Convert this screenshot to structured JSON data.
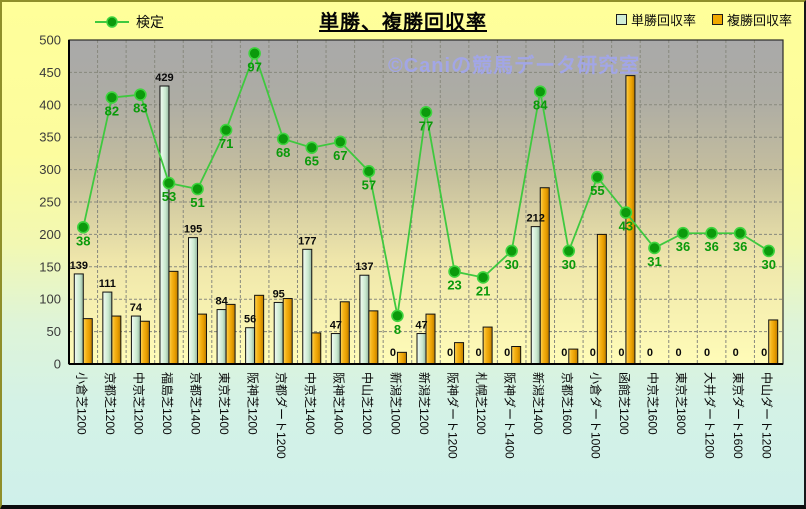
{
  "chart_data": {
    "type": "combo",
    "title": "単勝、複勝回収率",
    "watermark": "©Caniの競馬データ研究室",
    "categories": [
      "小倉芝1200",
      "京都芝1200",
      "中京芝1200",
      "福島芝1200",
      "京都芝1400",
      "東京芝1400",
      "阪神芝1200",
      "京都ダート1200",
      "中京芝1400",
      "阪神芝1400",
      "中山芝1200",
      "新潟芝1000",
      "新潟芝1200",
      "阪神ダート1200",
      "札幌芝1200",
      "阪神ダート1400",
      "新潟芝1400",
      "京都芝1600",
      "小倉ダート1000",
      "函館芝1200",
      "中京芝1600",
      "東京芝1800",
      "大井ダート1200",
      "東京ダート1600",
      "中山ダート1200"
    ],
    "series": [
      {
        "name": "検定",
        "type": "line",
        "color": "#3FC93F",
        "marker_color": "#0C9A0C",
        "values": [
          38,
          82,
          83,
          53,
          51,
          71,
          97,
          68,
          65,
          67,
          57,
          8,
          77,
          23,
          21,
          30,
          84,
          30,
          55,
          43,
          31,
          36,
          36,
          36,
          30
        ],
        "labels_shown": true
      },
      {
        "name": "単勝回収率",
        "type": "bar",
        "color": "#CFEDD6",
        "values": [
          139,
          111,
          74,
          429,
          195,
          84,
          56,
          95,
          177,
          47,
          137,
          0,
          47,
          0,
          0,
          0,
          212,
          0,
          0,
          0,
          0,
          0,
          0,
          0,
          0
        ],
        "labels_shown": true
      },
      {
        "name": "複勝回収率",
        "type": "bar",
        "color": "#F0A800",
        "values": [
          70,
          74,
          66,
          143,
          77,
          92,
          106,
          101,
          48,
          96,
          82,
          18,
          77,
          33,
          57,
          27,
          272,
          23,
          200,
          445,
          0,
          0,
          0,
          0,
          68
        ],
        "labels_shown": false
      }
    ],
    "ylim": [
      0,
      500
    ],
    "yticks": [
      0,
      50,
      100,
      150,
      200,
      250,
      300,
      350,
      400,
      450,
      500
    ],
    "grid": true,
    "legend_position": "top",
    "line_secondary_mapping": {
      "axis_offset": 38,
      "axis_scale": 4.55
    }
  }
}
